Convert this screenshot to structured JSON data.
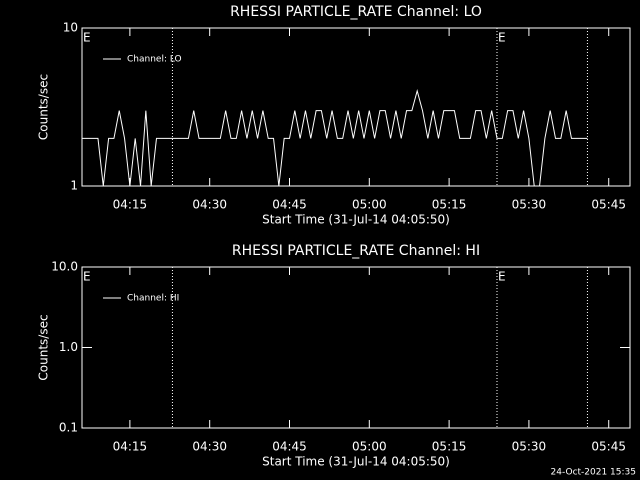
{
  "footer": "24-Oct-2021 15:35",
  "chart_data": [
    {
      "type": "line",
      "title": "RHESSI PARTICLE_RATE Channel: LO",
      "xlabel": "Start Time (31-Jul-14 04:05:50)",
      "ylabel": "Counts/sec",
      "x": [
        "04:06",
        "04:07",
        "04:08",
        "04:09",
        "04:10",
        "04:11",
        "04:12",
        "04:13",
        "04:14",
        "04:15",
        "04:16",
        "04:17",
        "04:18",
        "04:19",
        "04:20",
        "04:21",
        "04:22",
        "04:23",
        "04:24",
        "04:25",
        "04:26",
        "04:27",
        "04:28",
        "04:29",
        "04:30",
        "04:31",
        "04:32",
        "04:33",
        "04:34",
        "04:35",
        "04:36",
        "04:37",
        "04:38",
        "04:39",
        "04:40",
        "04:41",
        "04:42",
        "04:43",
        "04:44",
        "04:45",
        "04:46",
        "04:47",
        "04:48",
        "04:49",
        "04:50",
        "04:51",
        "04:52",
        "04:53",
        "04:54",
        "04:55",
        "04:56",
        "04:57",
        "04:58",
        "04:59",
        "05:00",
        "05:01",
        "05:02",
        "05:03",
        "05:04",
        "05:05",
        "05:06",
        "05:07",
        "05:08",
        "05:09",
        "05:10",
        "05:11",
        "05:12",
        "05:13",
        "05:14",
        "05:15",
        "05:16",
        "05:17",
        "05:18",
        "05:19",
        "05:20",
        "05:21",
        "05:22",
        "05:23",
        "05:24",
        "05:25",
        "05:26",
        "05:27",
        "05:28",
        "05:29",
        "05:30",
        "05:31",
        "05:32",
        "05:33",
        "05:34",
        "05:35",
        "05:36",
        "05:37",
        "05:38",
        "05:39",
        "05:40",
        "05:41"
      ],
      "series": [
        {
          "name": "Channel: LO",
          "color": "#ffffff",
          "values": [
            2,
            2,
            2,
            2,
            1,
            2,
            2,
            3,
            2,
            1,
            2,
            1,
            3,
            1,
            2,
            2,
            2,
            2,
            2,
            2,
            2,
            3,
            2,
            2,
            2,
            2,
            2,
            3,
            2,
            2,
            3,
            2,
            3,
            2,
            3,
            2,
            2,
            1,
            2,
            2,
            3,
            2,
            3,
            2,
            3,
            3,
            2,
            3,
            2,
            2,
            3,
            2,
            3,
            2,
            3,
            2,
            3,
            3,
            2,
            3,
            2,
            3,
            3,
            4,
            3,
            2,
            3,
            2,
            3,
            3,
            3,
            2,
            2,
            2,
            3,
            3,
            2,
            3,
            2,
            2,
            3,
            3,
            2,
            3,
            2,
            1,
            1,
            2,
            3,
            2,
            2,
            3,
            2,
            2,
            2,
            2
          ]
        }
      ],
      "xlim": [
        "04:06",
        "05:49"
      ],
      "xticks": [
        "04:15",
        "04:30",
        "04:45",
        "05:00",
        "05:15",
        "05:30",
        "05:45"
      ],
      "ylim": [
        1,
        10
      ],
      "yticks": [
        1,
        10
      ],
      "ylog": true,
      "legend": "upper left",
      "vlines": [
        "04:23",
        "05:24",
        "05:41"
      ],
      "markers": [
        {
          "x": "04:06",
          "label": "E"
        },
        {
          "x": "05:24",
          "label": "E"
        }
      ]
    },
    {
      "type": "line",
      "title": "RHESSI PARTICLE_RATE Channel: HI",
      "xlabel": "Start Time (31-Jul-14 04:05:50)",
      "ylabel": "Counts/sec",
      "x": [],
      "series": [
        {
          "name": "Channel: HI",
          "color": "#ffffff",
          "values": []
        }
      ],
      "xlim": [
        "04:06",
        "05:49"
      ],
      "xticks": [
        "04:15",
        "04:30",
        "04:45",
        "05:00",
        "05:15",
        "05:30",
        "05:45"
      ],
      "ylim": [
        0.1,
        10
      ],
      "yticks": [
        0.1,
        {
          "value": 1,
          "label": "1.0"
        },
        {
          "value": 10,
          "label": "10.0"
        }
      ],
      "ylog": true,
      "legend": "upper left",
      "vlines": [
        "04:23",
        "05:24",
        "05:41"
      ],
      "markers": [
        {
          "x": "04:06",
          "label": "E"
        },
        {
          "x": "05:24",
          "label": "E"
        }
      ]
    }
  ]
}
